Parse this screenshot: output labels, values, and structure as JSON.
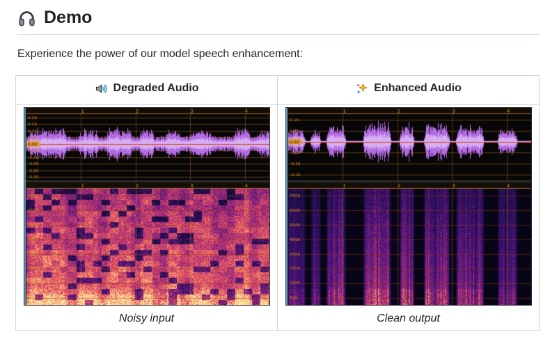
{
  "header": {
    "icon": "headphones-icon",
    "title": "Demo"
  },
  "intro": "Experience the power of our model speech enhancement:",
  "table": {
    "columns": [
      {
        "id": "degraded",
        "icon": "speaker-icon",
        "header": "Degraded Audio",
        "caption": "Noisy input"
      },
      {
        "id": "enhanced",
        "icon": "sparkles-icon",
        "header": "Enhanced Audio",
        "caption": "Clean output"
      }
    ]
  },
  "audacity_images": {
    "degraded": {
      "style": "noisy",
      "seed": 7,
      "time_ticks": [
        "1",
        "2",
        "3",
        "4"
      ],
      "waveform_ylabels": [
        "0.20",
        "0.15",
        "0.10",
        "0.05",
        "0.00",
        "-0.05",
        "-0.10",
        "-0.15",
        "-0.20",
        "-0.25"
      ],
      "spectrogram_ylabels": [
        "7500",
        "6500",
        "5500",
        "4500",
        "3500",
        "2500",
        "1500",
        "500"
      ]
    },
    "enhanced": {
      "style": "clean",
      "seed": 13,
      "time_ticks": [
        "1",
        "2",
        "3",
        "4"
      ],
      "waveform_ylabels": [
        "0.10",
        "0.05",
        "0.00",
        "-0.05",
        "-0.10",
        "-0.15"
      ],
      "spectrogram_ylabels": [
        "7500",
        "6500",
        "5500",
        "4500",
        "3500",
        "2500",
        "1500",
        "500"
      ]
    }
  },
  "colors": {
    "text": "#1f2328",
    "divider": "#d8dee4",
    "table_border": "#d0d7de",
    "track_bg": "#070707",
    "purple_wave": "#b36ae2",
    "purple_core": "#d6aef2",
    "ruler_text": "#e09a28",
    "axis_text": "#cf8a1e",
    "zero_line": "#d2420a",
    "grid_line": "#b96919",
    "sep": "#2b2b2b",
    "blue_strip": "#5f9fc8"
  }
}
